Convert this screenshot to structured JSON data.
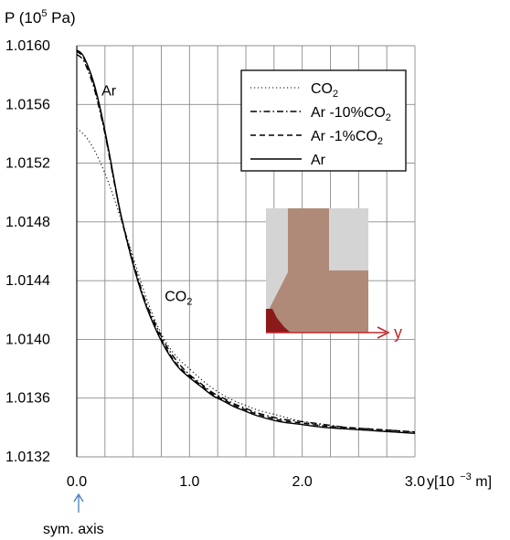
{
  "chart_data": {
    "type": "line",
    "title": "",
    "ylabel_parts": {
      "base": "P (10",
      "exp": "5",
      "unit": " Pa)"
    },
    "xlabel_parts": {
      "base": "y[10",
      "exp": "−3",
      "unit": " m]"
    },
    "xlim": [
      0.0,
      3.0
    ],
    "ylim": [
      1.0132,
      1.016
    ],
    "x_ticks": [
      {
        "value": 0.0,
        "label": "0.0"
      },
      {
        "value": 1.0,
        "label": "1.0"
      },
      {
        "value": 2.0,
        "label": "2.0"
      },
      {
        "value": 3.0,
        "label": "3.0"
      }
    ],
    "y_ticks": [
      {
        "value": 1.0132,
        "label": "1.0132"
      },
      {
        "value": 1.0136,
        "label": "1.0136"
      },
      {
        "value": 1.014,
        "label": "1.0140"
      },
      {
        "value": 1.0144,
        "label": "1.0144"
      },
      {
        "value": 1.0148,
        "label": "1.0148"
      },
      {
        "value": 1.0152,
        "label": "1.0152"
      },
      {
        "value": 1.0156,
        "label": "1.0156"
      },
      {
        "value": 1.016,
        "label": "1.0160"
      }
    ],
    "grid": true,
    "legend_position": "top-right",
    "series": [
      {
        "name": {
          "base": "CO",
          "sub": "2"
        },
        "dash": "dotted",
        "x": [
          0.0,
          0.1,
          0.2,
          0.3,
          0.4,
          0.5,
          0.6,
          0.7,
          0.8,
          0.9,
          1.0,
          1.1,
          1.2,
          1.3,
          1.4,
          1.5,
          1.6,
          1.8,
          2.0,
          2.2,
          2.4,
          2.6,
          2.8,
          3.0
        ],
        "y": [
          1.01544,
          1.01536,
          1.01522,
          1.01503,
          1.0148,
          1.01456,
          1.01432,
          1.01412,
          1.01397,
          1.01387,
          1.0138,
          1.01373,
          1.01367,
          1.01362,
          1.01358,
          1.01355,
          1.01352,
          1.01348,
          1.01344,
          1.01341,
          1.01339,
          1.01338,
          1.01337,
          1.01337
        ]
      },
      {
        "name": {
          "base": "Ar -10%CO",
          "sub": "2"
        },
        "dash": "dash-dot",
        "x": [
          0.0,
          0.05,
          0.1,
          0.15,
          0.2,
          0.25,
          0.3,
          0.35,
          0.4,
          0.5,
          0.6,
          0.7,
          0.8,
          0.9,
          1.0,
          1.1,
          1.2,
          1.3,
          1.4,
          1.5,
          1.6,
          1.8,
          2.0,
          2.2,
          2.4,
          2.6,
          2.8,
          3.0
        ],
        "y": [
          1.01594,
          1.01591,
          1.01583,
          1.01572,
          1.01557,
          1.0154,
          1.0152,
          1.015,
          1.01482,
          1.01453,
          1.01428,
          1.0141,
          1.01395,
          1.01384,
          1.01376,
          1.0137,
          1.01364,
          1.0136,
          1.01356,
          1.01353,
          1.0135,
          1.01346,
          1.01344,
          1.01342,
          1.0134,
          1.01339,
          1.01338,
          1.01337
        ]
      },
      {
        "name": {
          "base": "Ar -1%CO",
          "sub": "2"
        },
        "dash": "dashed",
        "x": [
          0.0,
          0.05,
          0.1,
          0.15,
          0.2,
          0.25,
          0.3,
          0.35,
          0.4,
          0.5,
          0.6,
          0.7,
          0.8,
          0.9,
          1.0,
          1.1,
          1.2,
          1.3,
          1.4,
          1.5,
          1.6,
          1.8,
          2.0,
          2.2,
          2.4,
          2.6,
          2.8,
          3.0
        ],
        "y": [
          1.01596,
          1.01593,
          1.01585,
          1.01574,
          1.01559,
          1.01541,
          1.01521,
          1.015,
          1.01481,
          1.01451,
          1.01426,
          1.01408,
          1.01393,
          1.01382,
          1.01375,
          1.01369,
          1.01363,
          1.01359,
          1.01355,
          1.01352,
          1.01349,
          1.01345,
          1.01343,
          1.01341,
          1.0134,
          1.01339,
          1.01338,
          1.01337
        ]
      },
      {
        "name": {
          "base": "Ar",
          "sub": ""
        },
        "dash": "solid",
        "x": [
          0.0,
          0.05,
          0.1,
          0.15,
          0.2,
          0.25,
          0.3,
          0.35,
          0.4,
          0.5,
          0.6,
          0.7,
          0.8,
          0.9,
          1.0,
          1.1,
          1.2,
          1.3,
          1.4,
          1.5,
          1.6,
          1.8,
          2.0,
          2.2,
          2.4,
          2.6,
          2.8,
          3.0
        ],
        "y": [
          1.01597,
          1.01594,
          1.01586,
          1.01575,
          1.0156,
          1.01542,
          1.01522,
          1.01501,
          1.01482,
          1.01451,
          1.01426,
          1.01407,
          1.01392,
          1.01381,
          1.01374,
          1.01368,
          1.01362,
          1.01358,
          1.01354,
          1.01351,
          1.01348,
          1.01344,
          1.01342,
          1.0134,
          1.01339,
          1.01338,
          1.01337,
          1.01336
        ]
      }
    ],
    "annotations": [
      {
        "id": "ar",
        "base": "Ar",
        "sub": "",
        "x": 0.22,
        "y": 1.01566
      },
      {
        "id": "co2",
        "base": "CO",
        "sub": "2",
        "x": 0.78,
        "y": 1.01426
      }
    ],
    "axis_note": "sym. axis",
    "inset": {
      "axis_label": "y",
      "colors": {
        "background": "#d4d4d4",
        "domain": "#b08a78",
        "hot": "#8b1a1a",
        "axis": "#c0282d"
      }
    }
  }
}
